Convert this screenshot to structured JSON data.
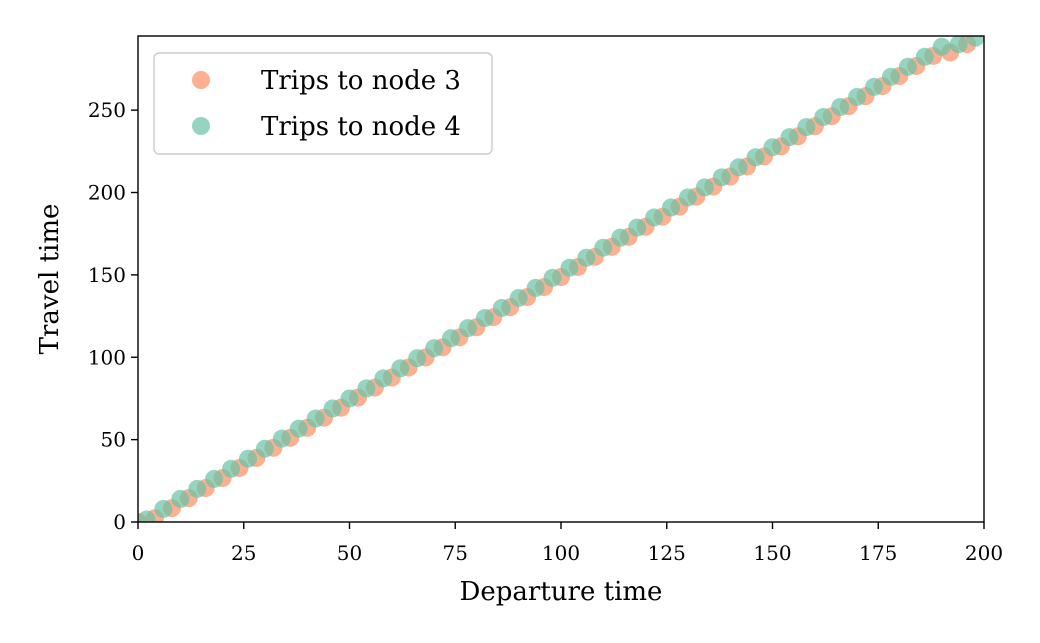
{
  "chart_data": {
    "type": "scatter",
    "title": "",
    "xlabel": "Departure time",
    "ylabel": "Travel time",
    "xlim": [
      0,
      200
    ],
    "ylim": [
      0,
      295
    ],
    "xticks": [
      0,
      25,
      50,
      75,
      100,
      125,
      150,
      175,
      200
    ],
    "yticks": [
      0,
      50,
      100,
      150,
      200,
      250
    ],
    "grid": false,
    "legend_position": "top-left",
    "series": [
      {
        "name": "Trips to node 3",
        "color": "#fc8d62",
        "x": [
          0,
          4,
          8,
          12,
          16,
          20,
          24,
          28,
          32,
          36,
          40,
          44,
          48,
          52,
          56,
          60,
          64,
          68,
          72,
          76,
          80,
          84,
          88,
          92,
          96,
          100,
          104,
          108,
          112,
          116,
          120,
          124,
          128,
          132,
          136,
          140,
          144,
          148,
          152,
          156,
          160,
          164,
          168,
          172,
          176,
          180,
          184,
          188,
          192,
          196
        ],
        "y": [
          0,
          2.3,
          8.4,
          14.5,
          20.6,
          26.7,
          32.8,
          38.9,
          45.0,
          51.1,
          57.2,
          63.3,
          69.4,
          75.5,
          81.6,
          87.7,
          93.8,
          99.9,
          106.0,
          112.1,
          118.2,
          124.3,
          130.4,
          136.5,
          142.6,
          148.7,
          154.8,
          160.9,
          167.0,
          173.1,
          179.2,
          185.3,
          191.4,
          197.5,
          203.6,
          209.7,
          215.8,
          221.9,
          228.0,
          234.1,
          240.2,
          246.3,
          252.4,
          258.5,
          264.6,
          270.7,
          276.8,
          282.9,
          285.0,
          290.0
        ]
      },
      {
        "name": "Trips to node 4",
        "color": "#66c2a5",
        "x": [
          2,
          6,
          10,
          14,
          18,
          22,
          26,
          30,
          34,
          38,
          42,
          46,
          50,
          54,
          58,
          62,
          66,
          70,
          74,
          78,
          82,
          86,
          90,
          94,
          98,
          102,
          106,
          110,
          114,
          118,
          122,
          126,
          130,
          134,
          138,
          142,
          146,
          150,
          154,
          158,
          162,
          166,
          170,
          174,
          178,
          182,
          186,
          190,
          194,
          198
        ],
        "y": [
          1.5,
          7.9,
          14.0,
          20.1,
          26.2,
          32.3,
          38.4,
          44.5,
          50.6,
          56.7,
          62.8,
          68.9,
          75.0,
          81.1,
          87.2,
          93.3,
          99.4,
          105.5,
          111.6,
          117.7,
          123.8,
          129.9,
          136.0,
          142.1,
          148.2,
          154.3,
          160.4,
          166.5,
          172.6,
          178.7,
          184.8,
          190.9,
          197.0,
          203.1,
          209.2,
          215.3,
          221.4,
          227.5,
          233.6,
          239.7,
          245.8,
          251.9,
          258.0,
          264.1,
          270.2,
          276.3,
          282.4,
          288.5,
          290.0,
          294.0
        ]
      }
    ]
  }
}
